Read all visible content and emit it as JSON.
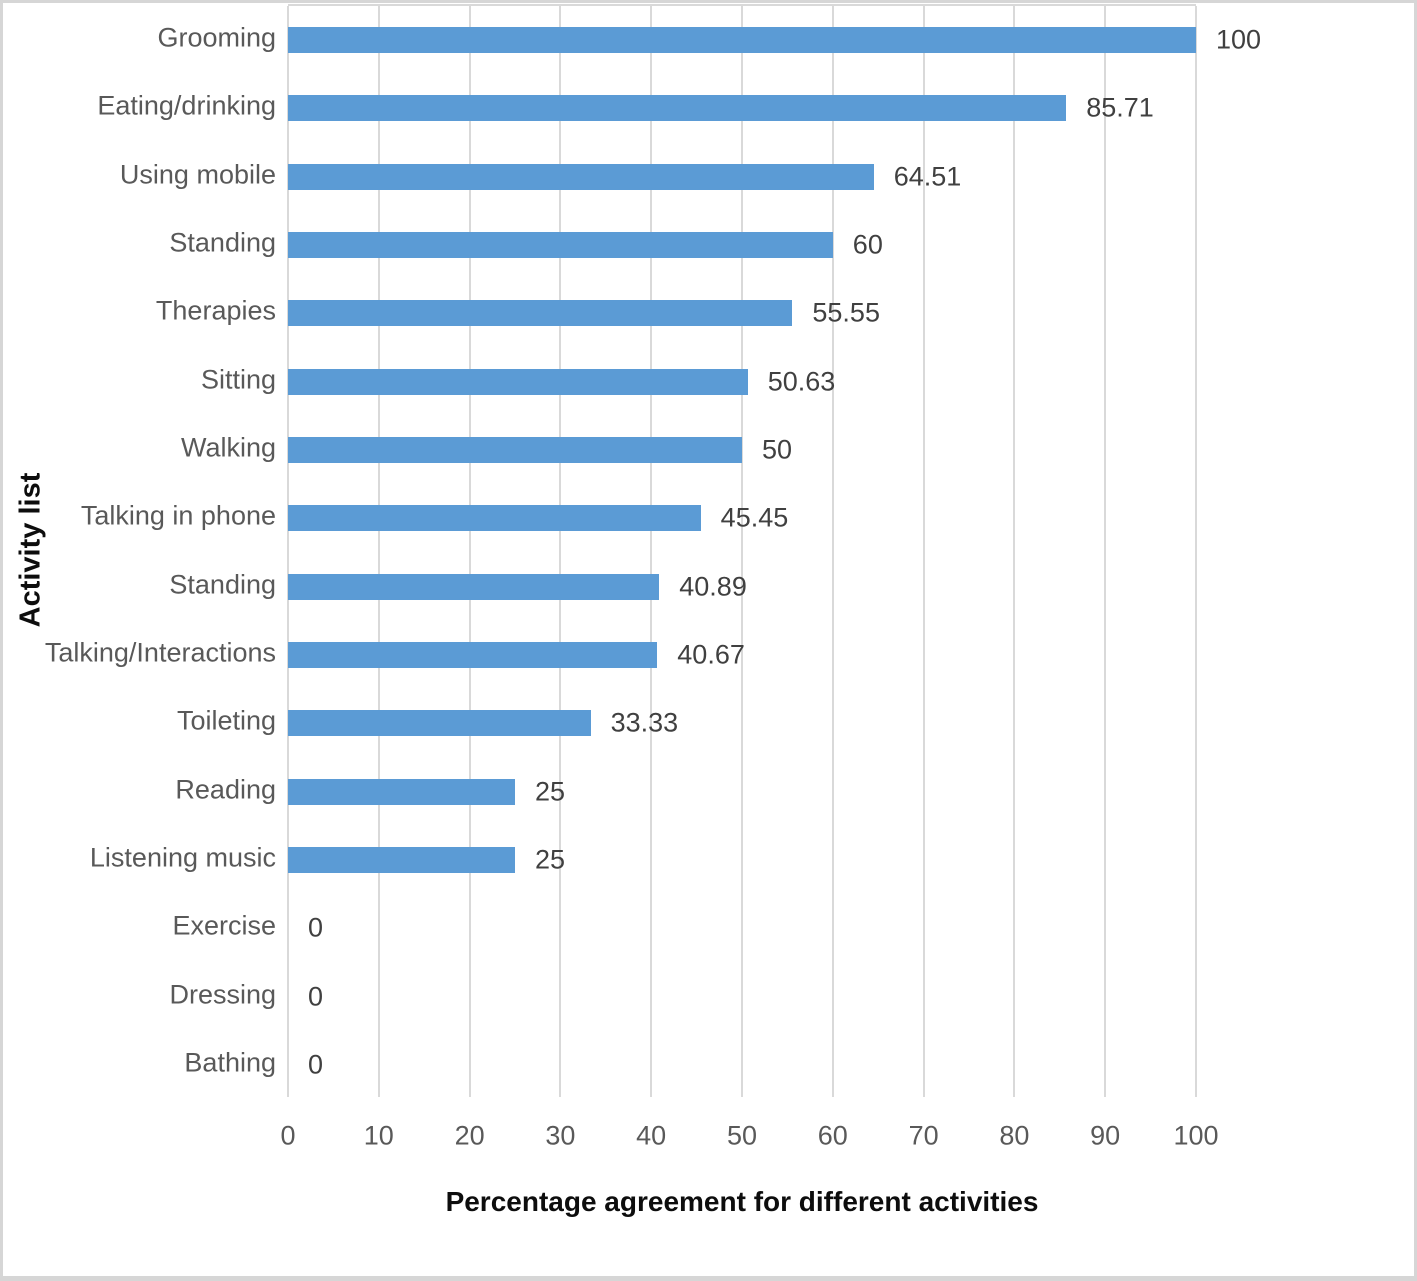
{
  "chart_data": {
    "type": "bar",
    "orientation": "horizontal",
    "title": "",
    "xlabel": "Percentage agreement for different activities",
    "ylabel": "Activity list",
    "categories": [
      "Grooming",
      "Eating/drinking",
      "Using mobile",
      "Standing",
      "Therapies",
      "Sitting",
      "Walking",
      "Talking in phone",
      "Standing",
      "Talking/Interactions",
      "Toileting",
      "Reading",
      "Listening music",
      "Exercise",
      "Dressing",
      "Bathing"
    ],
    "values": [
      100,
      85.71,
      64.51,
      60,
      55.55,
      50.63,
      50,
      45.45,
      40.89,
      40.67,
      33.33,
      25,
      25,
      0,
      0,
      0
    ],
    "value_labels": [
      "100",
      "85.71",
      "64.51",
      "60",
      "55.55",
      "50.63",
      "50",
      "45.45",
      "40.89",
      "40.67",
      "33.33",
      "25",
      "25",
      "0",
      "0",
      "0"
    ],
    "xlim": [
      0,
      100
    ],
    "xticks": [
      0,
      10,
      20,
      30,
      40,
      50,
      60,
      70,
      80,
      90,
      100
    ],
    "grid": "vertical",
    "legend": "none",
    "bar_color": "#5B9BD5",
    "gridline_color": "#D9D9D9",
    "axis_label_color": "#595959",
    "value_label_color": "#404040",
    "title_color": "#0d0d0d",
    "background_color": "#FFFFFF",
    "border_color": "#D6D6D6"
  }
}
